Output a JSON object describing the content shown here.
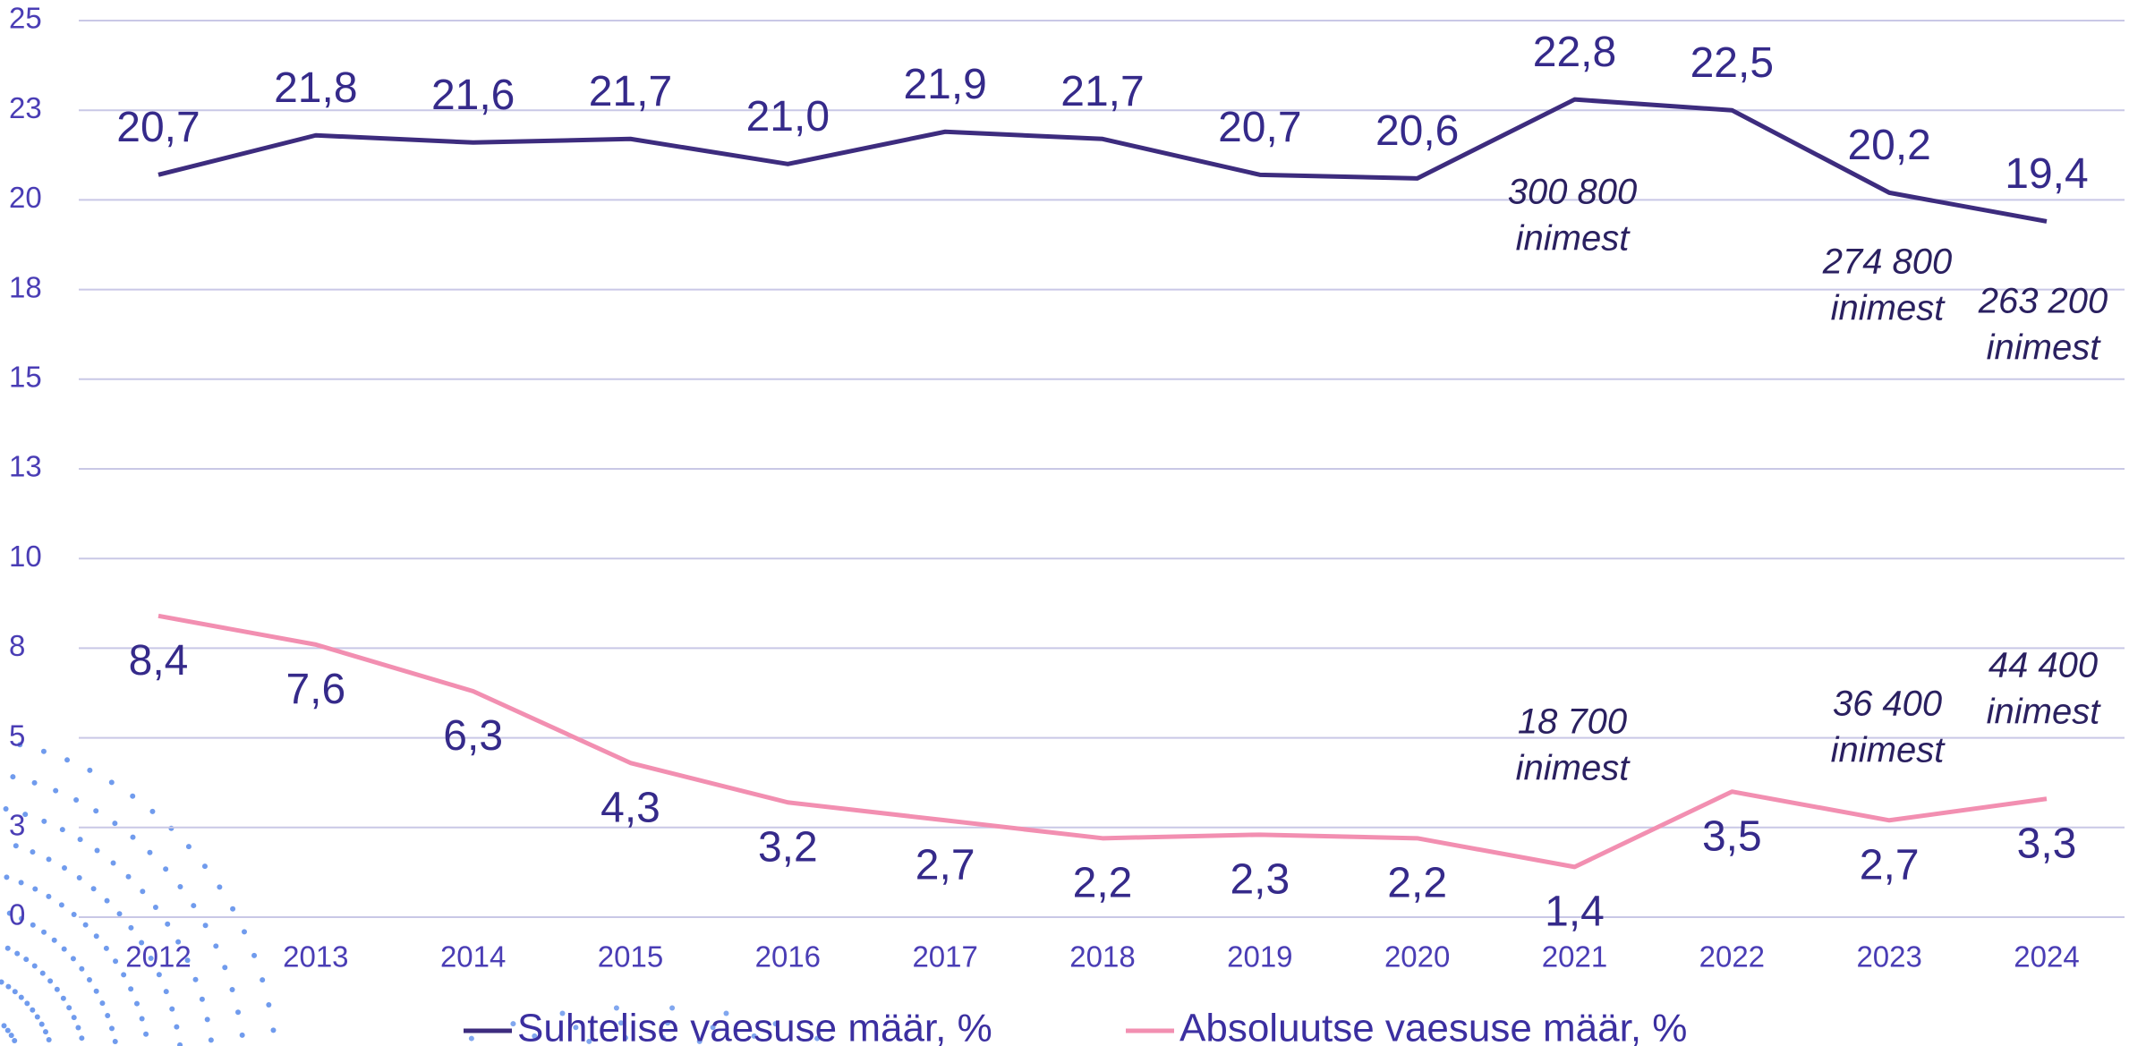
{
  "chart_data": {
    "type": "line",
    "x": [
      "2012",
      "2013",
      "2014",
      "2015",
      "2016",
      "2017",
      "2018",
      "2019",
      "2020",
      "2021",
      "2022",
      "2023",
      "2024"
    ],
    "series": [
      {
        "name": "Suhtelise vaesuse määr, %",
        "color": "#3d2c7e",
        "values": [
          20.7,
          21.8,
          21.6,
          21.7,
          21.0,
          21.9,
          21.7,
          20.7,
          20.6,
          22.8,
          22.5,
          20.2,
          19.4
        ],
        "value_labels": [
          "20,7",
          "21,8",
          "21,6",
          "21,7",
          "21,0",
          "21,9",
          "21,7",
          "20,7",
          "20,6",
          "22,8",
          "22,5",
          "20,2",
          "19,4"
        ]
      },
      {
        "name": "Absoluutse vaesuse määr, %",
        "color": "#f28fb1",
        "values": [
          8.4,
          7.6,
          6.3,
          4.3,
          3.2,
          2.7,
          2.2,
          2.3,
          2.2,
          1.4,
          3.5,
          2.7,
          3.3
        ],
        "value_labels": [
          "8,4",
          "7,6",
          "6,3",
          "4,3",
          "3,2",
          "2,7",
          "2,2",
          "2,3",
          "2,2",
          "1,4",
          "3,5",
          "2,7",
          "3,3"
        ]
      }
    ],
    "ylim": [
      0,
      25
    ],
    "yticks": [
      0,
      {
        "value": 2.5,
        "label": "3"
      },
      5,
      {
        "value": 7.5,
        "label": "8"
      },
      10,
      {
        "value": 12.5,
        "label": "13"
      },
      15,
      {
        "value": 17.5,
        "label": "18"
      },
      20,
      {
        "value": 22.5,
        "label": "23"
      },
      25
    ],
    "grid": true,
    "annotations": [
      [
        "300 800",
        "inimest"
      ],
      [
        "274 800",
        "inimest"
      ],
      [
        "263 200",
        "inimest"
      ],
      [
        "18 700",
        "inimest"
      ],
      [
        "36 400",
        "inimest"
      ],
      [
        "44 400",
        "inimest"
      ]
    ]
  }
}
